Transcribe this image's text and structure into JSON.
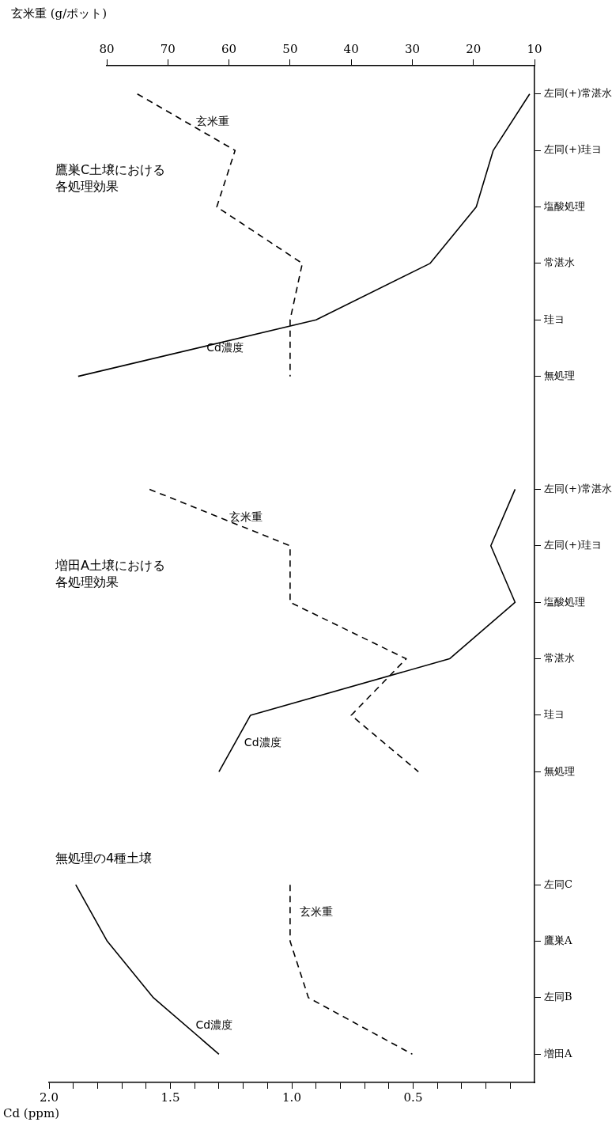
{
  "chart_data": {
    "type": "line",
    "orientation": "horizontal",
    "categories": [
      "左同(+)常湛水",
      "左同(+)珪ヨ",
      "塩酸処理",
      "常湛水",
      "珪ヨ",
      "無処理",
      null,
      "左同(+)常湛水",
      "左同(+)珪ヨ",
      "塩酸処理",
      "常湛水",
      "珪ヨ",
      "無処理",
      null,
      "左同C",
      "鷹巣A",
      "左同B",
      "増田A"
    ],
    "series": [
      {
        "name": "Cd濃度",
        "color": "#000000",
        "line_style": "solid",
        "values": [
          0.02,
          0.17,
          0.24,
          0.43,
          0.9,
          1.88,
          null,
          null,
          null,
          null,
          null,
          null,
          null,
          null,
          null,
          null,
          null,
          null
        ]
      },
      {
        "name": "玄米重",
        "color": "#000000",
        "line_style": "dashed",
        "axis": "x2",
        "values": [
          75,
          59,
          62,
          48,
          50,
          50,
          null,
          null,
          null,
          null,
          null,
          null,
          null,
          null,
          null,
          null,
          null,
          null
        ]
      },
      {
        "name": "Cd濃度",
        "color": "#000000",
        "line_style": "solid",
        "values": [
          null,
          null,
          null,
          null,
          null,
          null,
          null,
          0.08,
          0.18,
          0.08,
          0.35,
          1.17,
          1.3,
          null,
          null,
          null,
          null,
          null
        ]
      },
      {
        "name": "玄米重",
        "color": "#000000",
        "line_style": "dashed",
        "axis": "x2",
        "values": [
          null,
          null,
          null,
          null,
          null,
          null,
          null,
          73,
          50,
          50,
          31,
          40,
          29,
          null,
          null,
          null,
          null,
          null
        ]
      },
      {
        "name": "Cd濃度",
        "color": "#000000",
        "line_style": "solid",
        "values": [
          null,
          null,
          null,
          null,
          null,
          null,
          null,
          null,
          null,
          null,
          null,
          null,
          null,
          null,
          1.89,
          1.76,
          1.57,
          1.3
        ]
      },
      {
        "name": "玄米重",
        "color": "#000000",
        "line_style": "dashed",
        "axis": "x2",
        "values": [
          null,
          null,
          null,
          null,
          null,
          null,
          null,
          null,
          null,
          null,
          null,
          null,
          null,
          null,
          50,
          50,
          47,
          30
        ]
      }
    ],
    "annotations": [
      "鷹巣C土壌における各処理効果",
      "増田A土壌における各処理効果",
      "無処理の4種土壌"
    ],
    "xlabel": "Cd (ppm)",
    "xlim": [
      2.0,
      0
    ],
    "xticks": [
      {
        "value": 2.0,
        "label": "2.0"
      },
      {
        "value": 1.9,
        "label": null
      },
      {
        "value": 1.8,
        "label": null
      },
      {
        "value": 1.7,
        "label": null
      },
      {
        "value": 1.6,
        "label": null
      },
      {
        "value": 1.5,
        "label": "1.5"
      },
      {
        "value": 1.4,
        "label": null
      },
      {
        "value": 1.3,
        "label": null
      },
      {
        "value": 1.2,
        "label": null
      },
      {
        "value": 1.1,
        "label": null
      },
      {
        "value": 1.0,
        "label": "1.0"
      },
      {
        "value": 0.9,
        "label": null
      },
      {
        "value": 0.8,
        "label": null
      },
      {
        "value": 0.7,
        "label": null
      },
      {
        "value": 0.6,
        "label": null
      },
      {
        "value": 0.5,
        "label": "0.5"
      },
      {
        "value": 0.4,
        "label": null
      },
      {
        "value": 0.3,
        "label": null
      },
      {
        "value": 0.2,
        "label": null
      },
      {
        "value": 0.1,
        "label": null
      }
    ],
    "x2label": "玄米重 (g/ポット)",
    "x2lim": [
      80,
      10
    ],
    "x2ticks": [
      80,
      70,
      60,
      50,
      40,
      30,
      20,
      10
    ],
    "marker": "none",
    "grid": false,
    "legend": false
  }
}
